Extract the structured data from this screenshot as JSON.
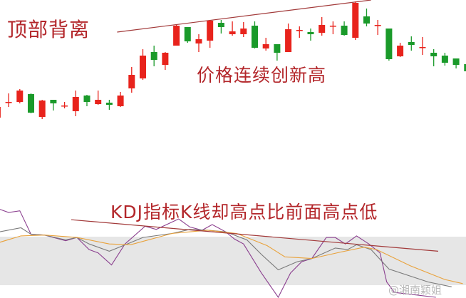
{
  "chart_data": [
    {
      "type": "candlestick",
      "title": "顶部背离",
      "annotation": "价格连续创新高",
      "colors": {
        "up": "#e8231c",
        "down": "#1a9a2a",
        "trendline": "#a23a3a"
      },
      "candles": [
        [
          35,
          50,
          50,
          35
        ],
        [
          57,
          57,
          69,
          50
        ],
        [
          57,
          73,
          75,
          55
        ],
        [
          68,
          42,
          69,
          41
        ],
        [
          36,
          59,
          60,
          33
        ],
        [
          60,
          55,
          60,
          45
        ],
        [
          52,
          52,
          57,
          48
        ],
        [
          44,
          64,
          73,
          37
        ],
        [
          66,
          57,
          67,
          51
        ],
        [
          54,
          60,
          73,
          53
        ],
        [
          56,
          53,
          60,
          46
        ],
        [
          51,
          66,
          71,
          50
        ],
        [
          76,
          95,
          106,
          70
        ],
        [
          90,
          122,
          131,
          88
        ],
        [
          127,
          116,
          136,
          107
        ],
        [
          109,
          126,
          127,
          102
        ],
        [
          136,
          164,
          165,
          136
        ],
        [
          162,
          142,
          162,
          140
        ],
        [
          139,
          145,
          152,
          127
        ],
        [
          143,
          171,
          172,
          133
        ],
        [
          168,
          162,
          172,
          153
        ],
        [
          152,
          156,
          170,
          150
        ],
        [
          152,
          160,
          169,
          148
        ],
        [
          164,
          133,
          170,
          132
        ],
        [
          132,
          138,
          147,
          129
        ],
        [
          138,
          126,
          138,
          115
        ],
        [
          127,
          159,
          167,
          127
        ],
        [
          158,
          158,
          163,
          147
        ],
        [
          155,
          152,
          160,
          143
        ],
        [
          154,
          165,
          176,
          150
        ],
        [
          164,
          164,
          170,
          152
        ],
        [
          164,
          151,
          170,
          150
        ],
        [
          147,
          196,
          198,
          144
        ],
        [
          177,
          167,
          188,
          163
        ],
        [
          165,
          165,
          172,
          151
        ],
        [
          160,
          117,
          160,
          115
        ],
        [
          121,
          136,
          140,
          120
        ],
        [
          141,
          137,
          149,
          129
        ],
        [
          134,
          134,
          148,
          123
        ],
        [
          126,
          121,
          131,
          107
        ],
        [
          122,
          112,
          126,
          108
        ],
        [
          118,
          109,
          118,
          104
        ],
        [
          110,
          100,
          110,
          100
        ]
      ],
      "candle_fields": [
        "open",
        "close",
        "high",
        "low"
      ],
      "trendline": [
        [
          11.7,
          155
        ],
        [
          34.4,
          200
        ]
      ]
    },
    {
      "type": "line",
      "annotation": "KDJ指标K线却高点比前面高点低",
      "band": [
        20,
        80
      ],
      "colors": {
        "J": "#8b3f8f",
        "K": "#7a7a7a",
        "D": "#e9a23b",
        "band": "#e6e6e6",
        "trendline": "#a23a3a"
      },
      "series": [
        {
          "key": "J",
          "points": [
            [
              1.2,
              114
            ],
            [
              2.0,
              110
            ],
            [
              3.0,
              112
            ],
            [
              4.0,
              83
            ],
            [
              5.2,
              82
            ],
            [
              7.1,
              75
            ],
            [
              8.1,
              79
            ],
            [
              9.2,
              64
            ],
            [
              10.0,
              60
            ],
            [
              11.2,
              45
            ],
            [
              12.4,
              71
            ],
            [
              14.2,
              93
            ],
            [
              15.2,
              89
            ],
            [
              17.2,
              102
            ],
            [
              18.2,
              92
            ],
            [
              19.3,
              88
            ],
            [
              20.2,
              95
            ],
            [
              21.4,
              86
            ],
            [
              22.2,
              77
            ],
            [
              23.0,
              71
            ],
            [
              24.6,
              35
            ],
            [
              26.1,
              5
            ],
            [
              27.2,
              35
            ],
            [
              28.2,
              49
            ],
            [
              29.1,
              53
            ],
            [
              30.4,
              79
            ],
            [
              31.2,
              79
            ],
            [
              32.1,
              71
            ],
            [
              33.1,
              81
            ],
            [
              34.2,
              71
            ],
            [
              35.2,
              60
            ],
            [
              35.8,
              24
            ],
            [
              36.5,
              11
            ],
            [
              40.2,
              5
            ]
          ]
        },
        {
          "key": "K",
          "points": [
            [
              1.2,
              86
            ],
            [
              3.1,
              91
            ],
            [
              4.0,
              83
            ],
            [
              5.2,
              82
            ],
            [
              7.1,
              76
            ],
            [
              8.1,
              79
            ],
            [
              9.2,
              71
            ],
            [
              11.0,
              62
            ],
            [
              12.6,
              71
            ],
            [
              14.0,
              79
            ],
            [
              16.6,
              84
            ],
            [
              18.2,
              89
            ],
            [
              19.8,
              88
            ],
            [
              21.4,
              86
            ],
            [
              23.3,
              76
            ],
            [
              24.6,
              58
            ],
            [
              26.1,
              39
            ],
            [
              27.8,
              49
            ],
            [
              29.1,
              53
            ],
            [
              31.2,
              66
            ],
            [
              32.3,
              64
            ],
            [
              33.1,
              70
            ],
            [
              34.4,
              64
            ],
            [
              36.0,
              40
            ],
            [
              39.5,
              24
            ],
            [
              41.6,
              18
            ]
          ]
        },
        {
          "key": "D",
          "points": [
            [
              1.2,
              73
            ],
            [
              3.1,
              81
            ],
            [
              5.2,
              82
            ],
            [
              8.1,
              79
            ],
            [
              11.0,
              71
            ],
            [
              12.9,
              70
            ],
            [
              16.6,
              84
            ],
            [
              19.8,
              88
            ],
            [
              22.4,
              84
            ],
            [
              25.1,
              69
            ],
            [
              26.7,
              55
            ],
            [
              29.1,
              53
            ],
            [
              31.7,
              61
            ],
            [
              33.8,
              67
            ],
            [
              34.9,
              64
            ],
            [
              37.9,
              44
            ],
            [
              41.0,
              27
            ],
            [
              42.6,
              22
            ]
          ]
        }
      ],
      "trendline": [
        [
          7.6,
          101
        ],
        [
          40.4,
          62
        ]
      ]
    }
  ],
  "watermark": "@湘南颖姐"
}
